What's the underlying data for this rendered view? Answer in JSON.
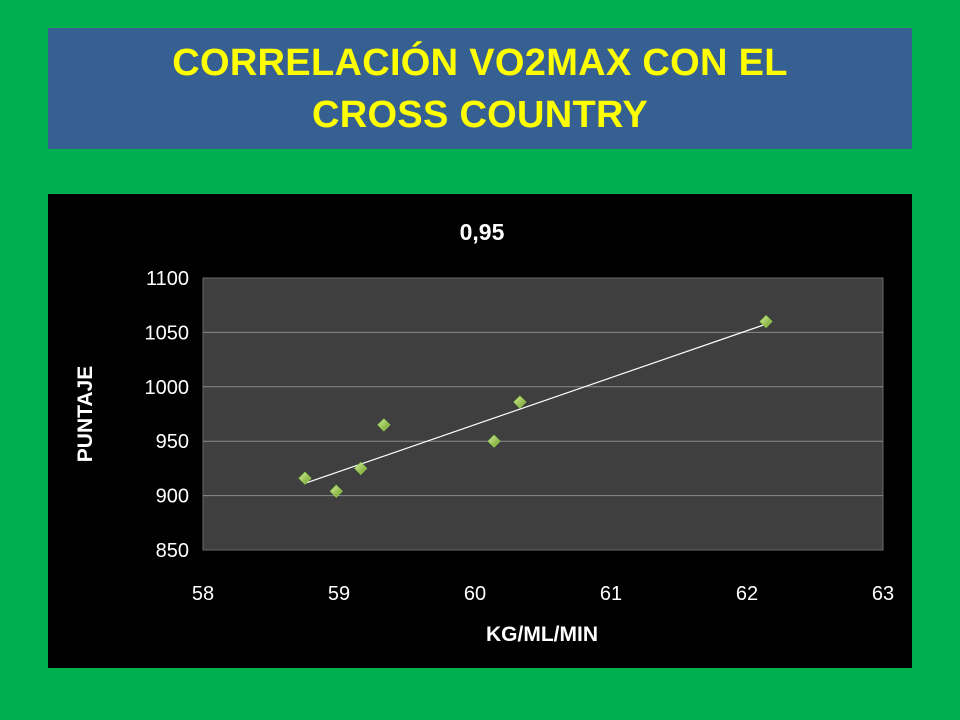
{
  "slide": {
    "title_line1": "CORRELACIÓN VO2MAX CON EL",
    "title_line2": "CROSS COUNTRY",
    "background_color": "#00b050",
    "title_color": "#ffff00",
    "banner_color": "#376092"
  },
  "chart_data": {
    "type": "scatter",
    "title": "0,95",
    "xlabel": "KG/ML/MIN",
    "ylabel": "PUNTAJE",
    "xlim": [
      58,
      63
    ],
    "ylim": [
      850,
      1100
    ],
    "xticks": [
      "58",
      "59",
      "60",
      "61",
      "62",
      "63"
    ],
    "yticks": [
      "850",
      "900",
      "950",
      "1000",
      "1050",
      "1100"
    ],
    "grid": "horizontal",
    "marker_color": "#92d050",
    "trendline": true,
    "series": [
      {
        "x": [
          58.75,
          58.98,
          59.16,
          59.33,
          60.14,
          60.33,
          62.14
        ],
        "y": [
          916,
          904,
          925,
          965,
          950,
          986,
          1060
        ]
      }
    ]
  }
}
